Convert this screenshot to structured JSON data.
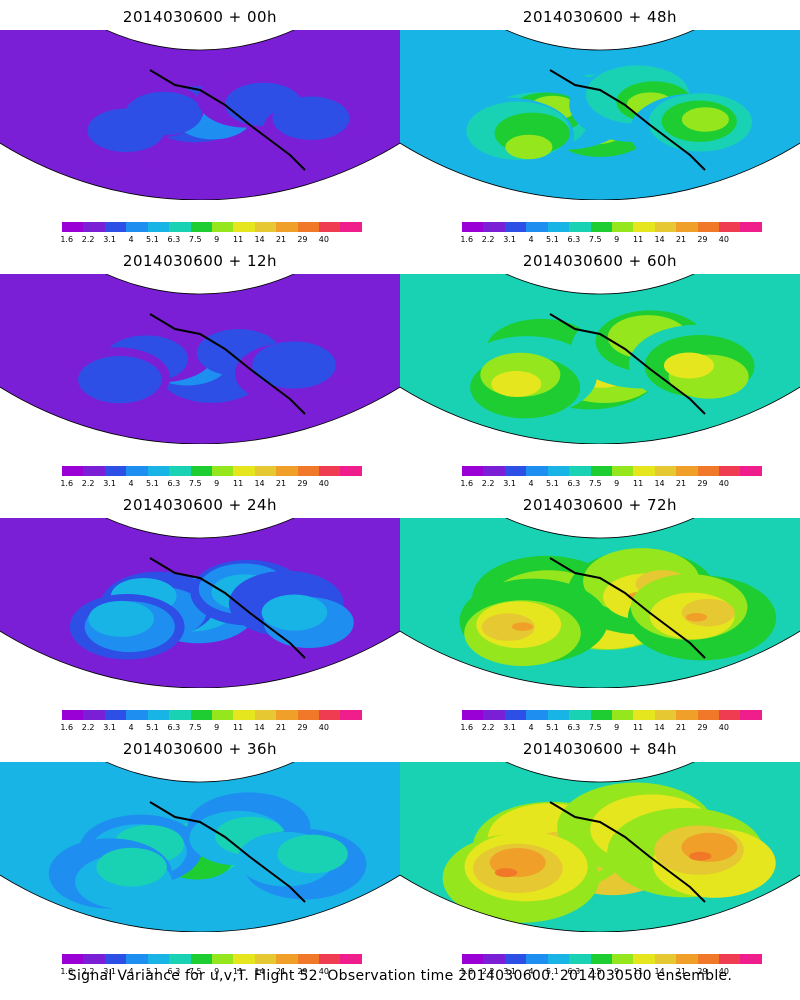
{
  "panels": [
    {
      "title": "2014030600 + 00h",
      "level": 0
    },
    {
      "title": "2014030600 + 48h",
      "level": 4
    },
    {
      "title": "2014030600 + 12h",
      "level": 1
    },
    {
      "title": "2014030600 + 60h",
      "level": 5
    },
    {
      "title": "2014030600 + 24h",
      "level": 2
    },
    {
      "title": "2014030600 + 72h",
      "level": 6
    },
    {
      "title": "2014030600 + 36h",
      "level": 3
    },
    {
      "title": "2014030600 + 84h",
      "level": 7
    }
  ],
  "colorbar": {
    "colors": [
      "#9a00d6",
      "#7b1fd6",
      "#2d4fe6",
      "#1e8ff0",
      "#19b4e6",
      "#19d2b4",
      "#1ecd32",
      "#96e61e",
      "#e6e61e",
      "#e6c832",
      "#f0a028",
      "#f07828",
      "#f03c50",
      "#f01e8c"
    ],
    "labels": [
      "1.6",
      "2.2",
      "3.1",
      "4",
      "5.1",
      "6.3",
      "7.5",
      "9",
      "11",
      "14",
      "21",
      "29",
      "40"
    ]
  },
  "caption": "Signal Variance for u,v,T. Flight 52. Observation time 2014030600. 2014030500 ensemble."
}
